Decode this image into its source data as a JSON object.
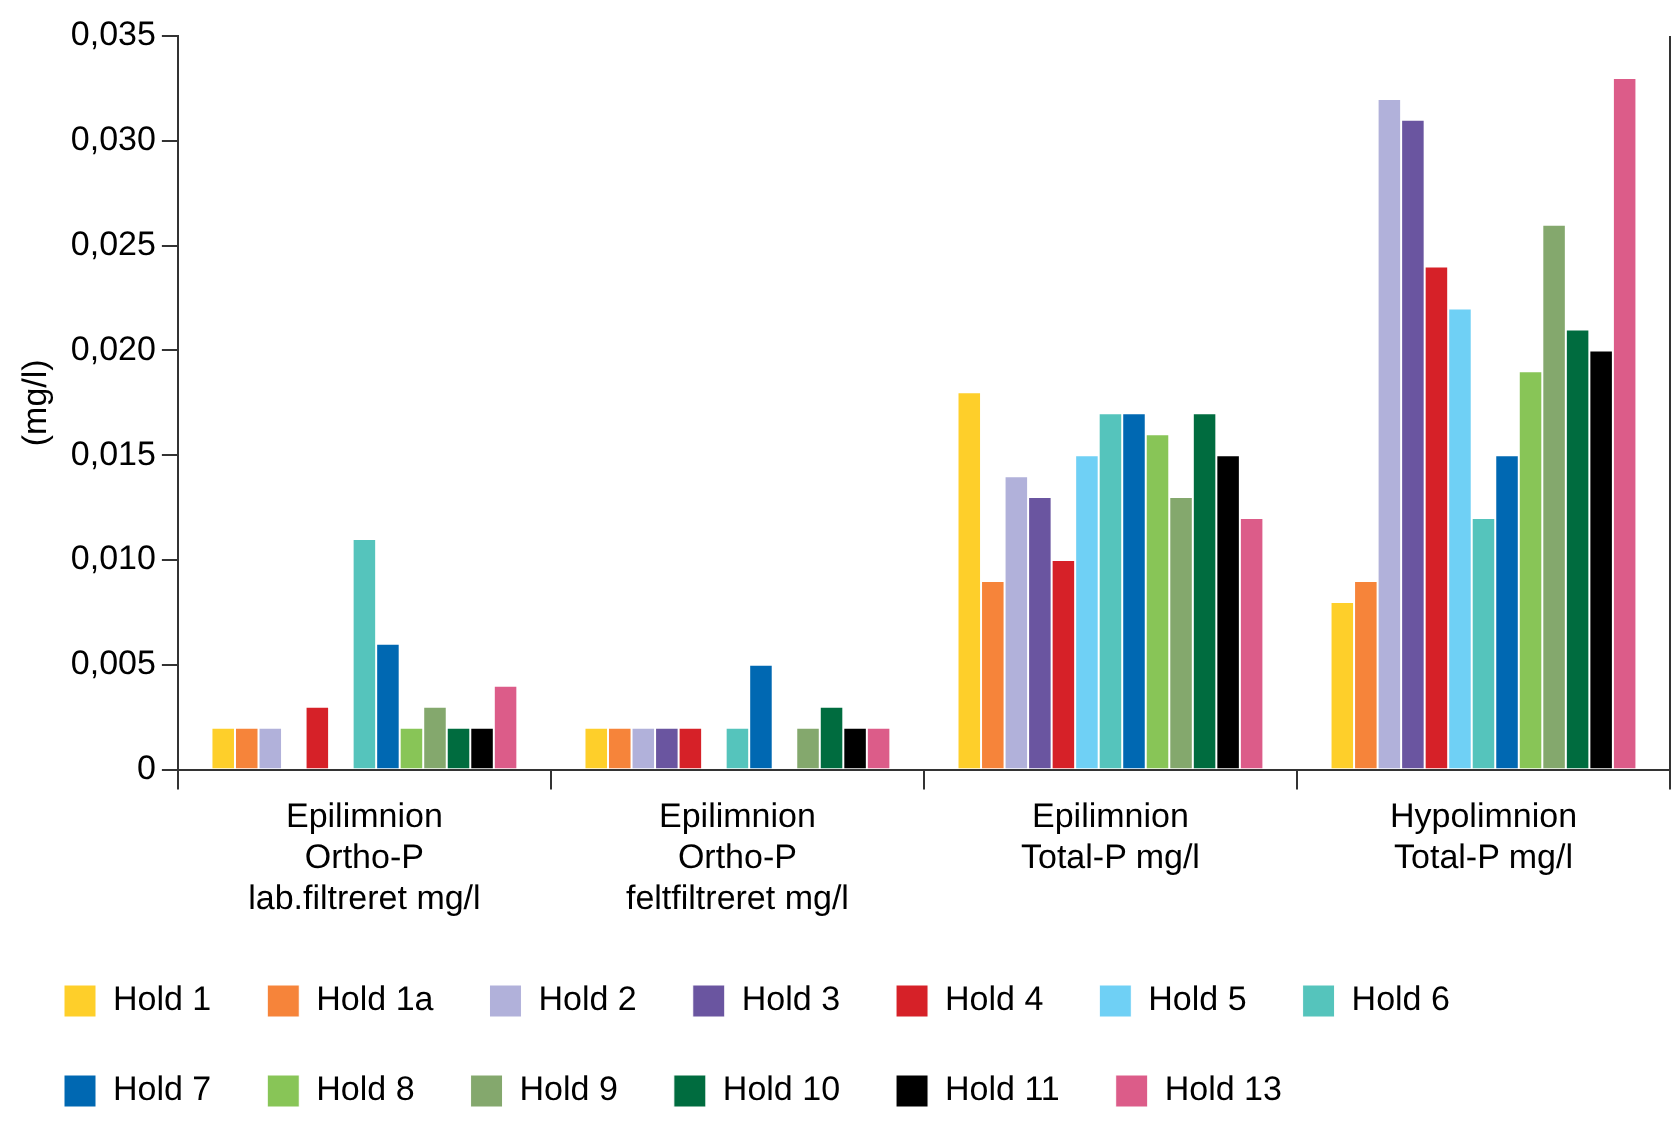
{
  "chart_data": {
    "type": "bar",
    "ylabel": "(mg/l)",
    "categories": [
      "Epilimnion\nOrtho-P\nlab.filtreret mg/l",
      "Epilimnion\nOrtho-P\nfeltfiltreret mg/l",
      "Epilimnion\nTotal-P mg/l",
      "Hypolimnion\nTotal-P mg/l"
    ],
    "series": [
      {
        "name": "Hold 1",
        "color": "#fecf2a",
        "values": [
          0.002,
          0.002,
          0.018,
          0.008
        ]
      },
      {
        "name": "Hold 1a",
        "color": "#f6843a",
        "values": [
          0.002,
          0.002,
          0.009,
          0.009
        ]
      },
      {
        "name": "Hold 2",
        "color": "#b1b1da",
        "values": [
          0.002,
          0.002,
          0.014,
          0.032
        ]
      },
      {
        "name": "Hold 3",
        "color": "#6a55a0",
        "values": [
          null,
          0.002,
          0.013,
          0.031
        ]
      },
      {
        "name": "Hold 4",
        "color": "#d62128",
        "values": [
          0.003,
          0.002,
          0.01,
          0.024
        ]
      },
      {
        "name": "Hold 5",
        "color": "#6fd0f5",
        "values": [
          null,
          null,
          0.015,
          0.022
        ]
      },
      {
        "name": "Hold 6",
        "color": "#55c4bc",
        "values": [
          0.011,
          0.002,
          0.017,
          0.012
        ]
      },
      {
        "name": "Hold 7",
        "color": "#0068b2",
        "values": [
          0.006,
          0.005,
          0.017,
          0.015
        ]
      },
      {
        "name": "Hold 8",
        "color": "#88c557",
        "values": [
          0.002,
          null,
          0.016,
          0.019
        ]
      },
      {
        "name": "Hold 9",
        "color": "#84a86d",
        "values": [
          0.003,
          0.002,
          0.013,
          0.026
        ]
      },
      {
        "name": "Hold 10",
        "color": "#006c3f",
        "values": [
          0.002,
          0.003,
          0.017,
          0.021
        ]
      },
      {
        "name": "Hold 11",
        "color": "#000000",
        "values": [
          0.002,
          0.002,
          0.015,
          0.02
        ]
      },
      {
        "name": "Hold 13",
        "color": "#dc5c89",
        "values": [
          0.004,
          0.002,
          0.012,
          0.033
        ]
      }
    ],
    "ylim": [
      0,
      0.035
    ],
    "yticks": [
      0,
      {
        "value": 0.005,
        "label": "0,005"
      },
      {
        "value": 0.01,
        "label": "0,010"
      },
      {
        "value": 0.015,
        "label": "0,015"
      },
      {
        "value": 0.02,
        "label": "0,020"
      },
      {
        "value": 0.025,
        "label": "0,025"
      },
      {
        "value": 0.03,
        "label": "0,030"
      },
      {
        "value": 0.035,
        "label": "0,035"
      }
    ],
    "grid": false,
    "legend": "bottom"
  }
}
